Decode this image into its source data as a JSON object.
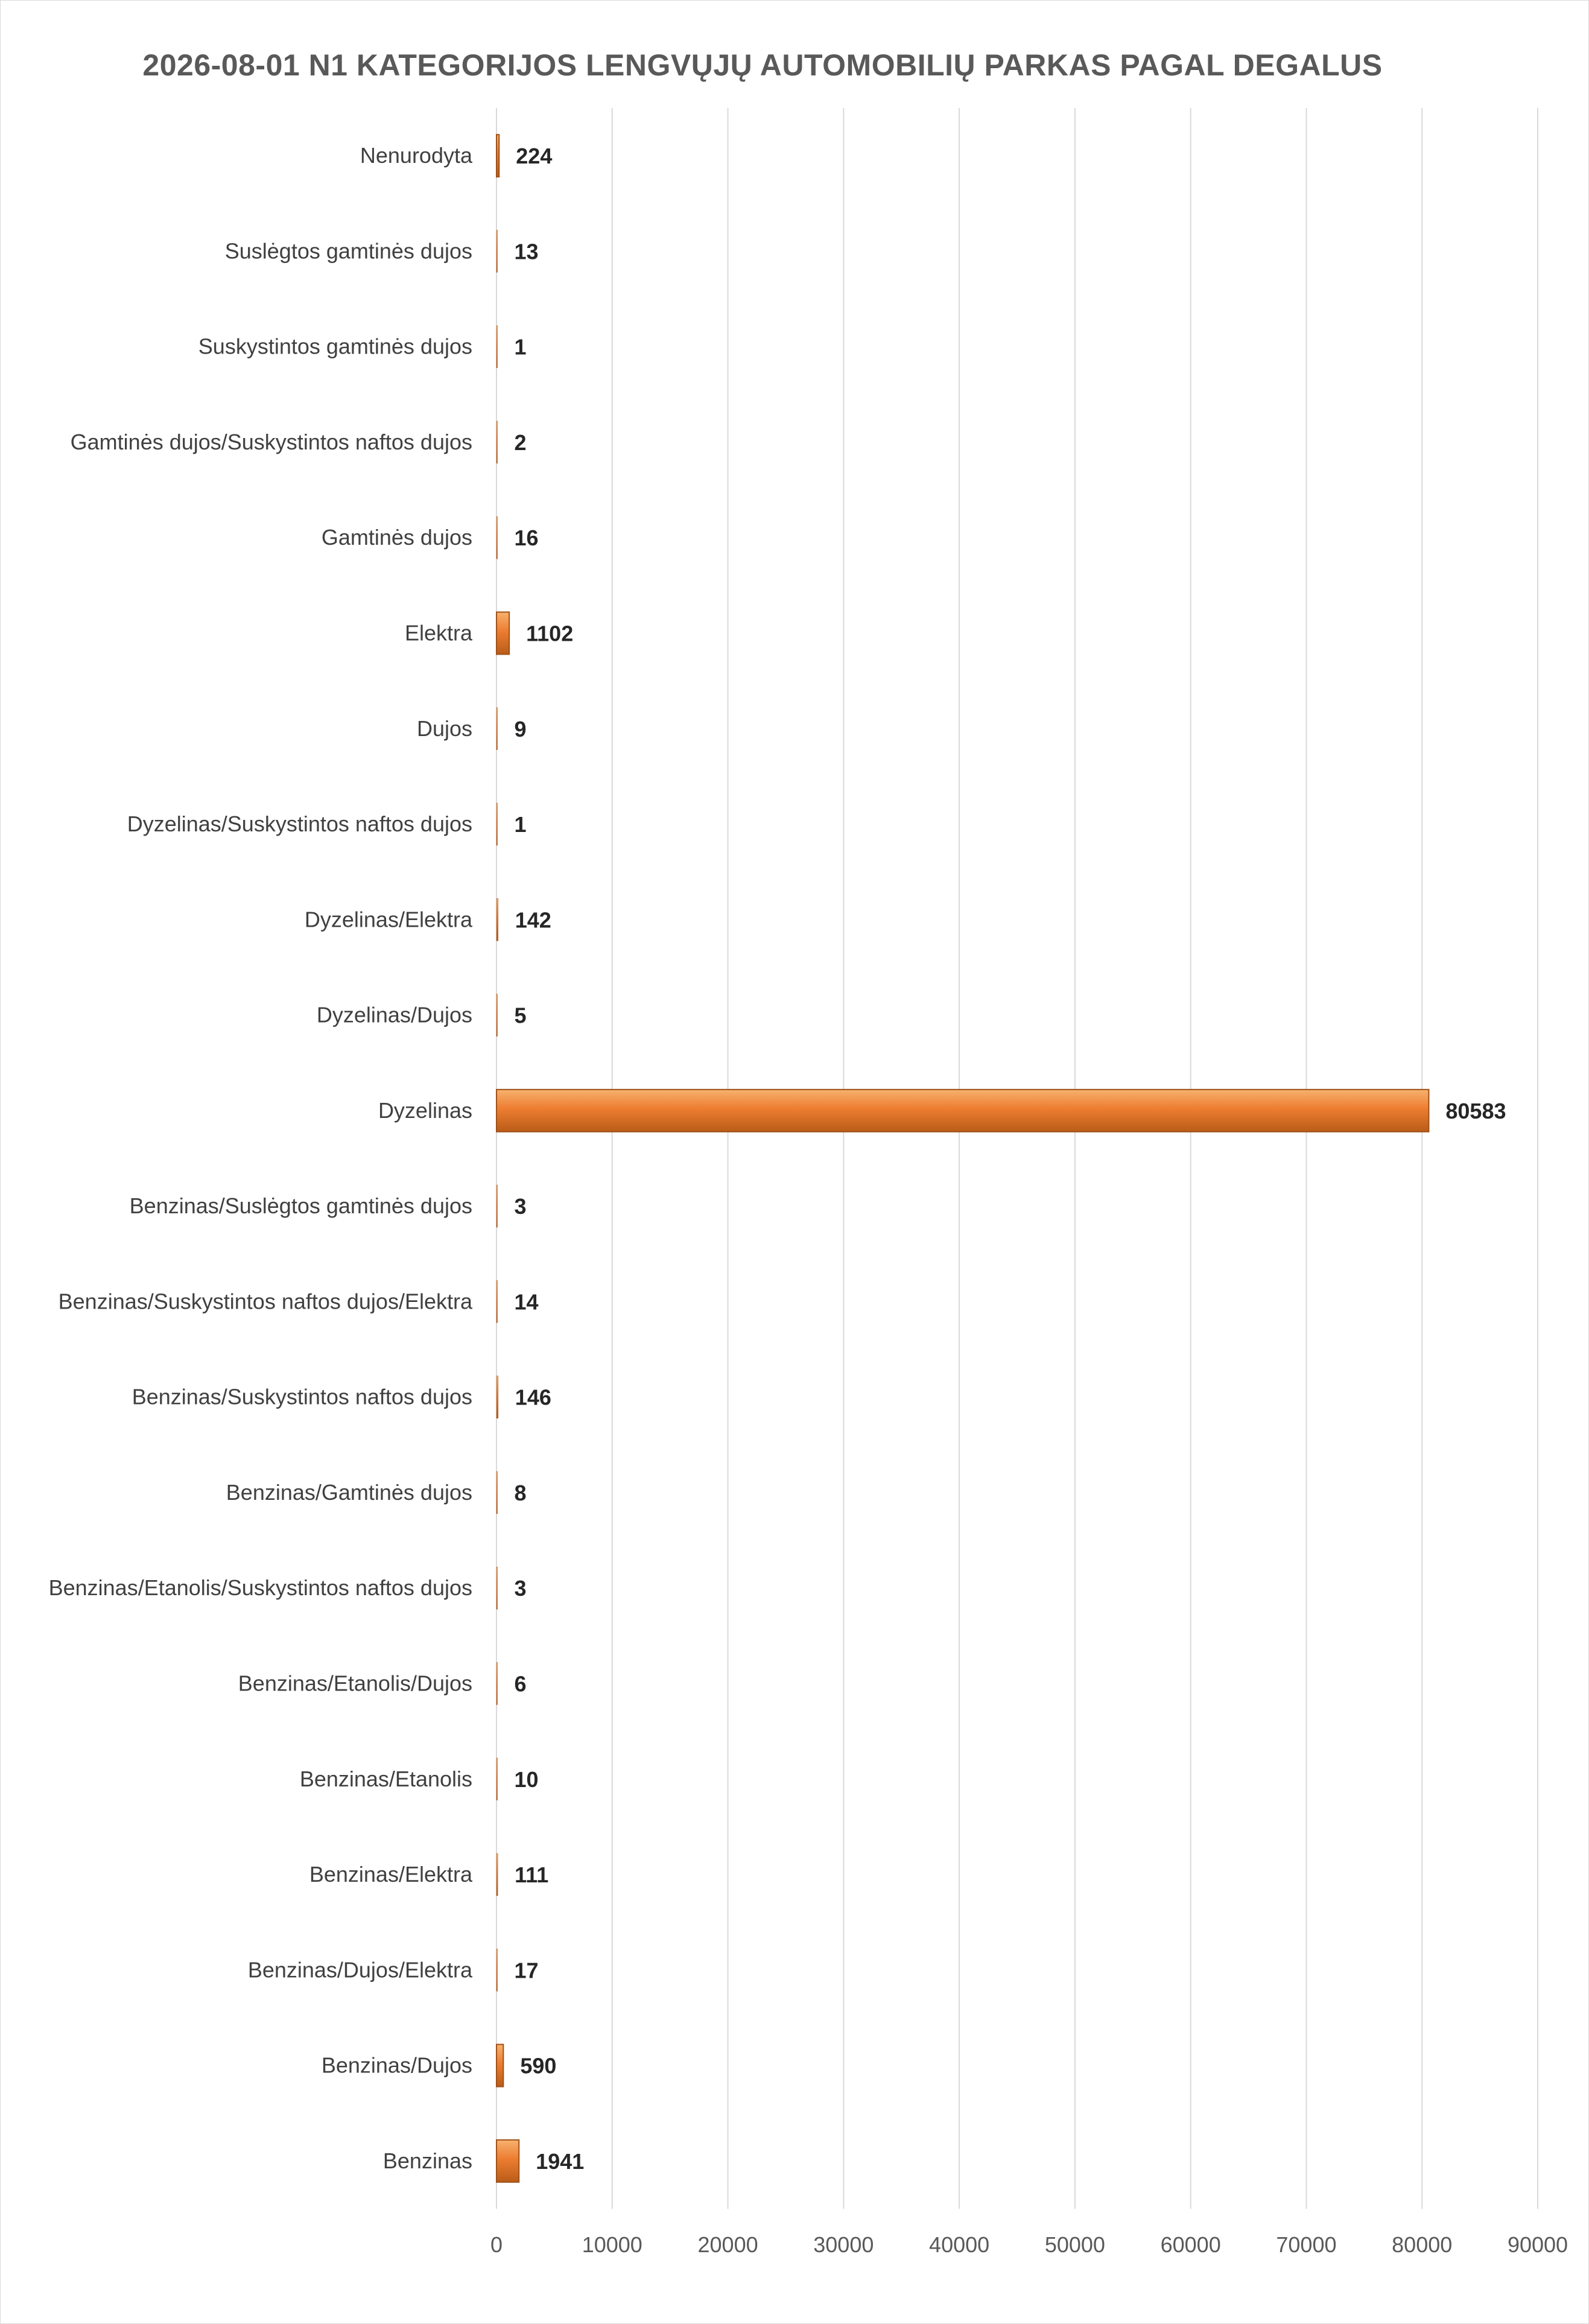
{
  "chart_data": {
    "type": "bar",
    "orientation": "horizontal",
    "title": "2026-08-01 N1 KATEGORIJOS LENGVŲJŲ AUTOMOBILIŲ PARKAS PAGAL DEGALUS",
    "xlabel": "",
    "ylabel": "",
    "xlim": [
      0,
      90000
    ],
    "x_ticks": [
      0,
      10000,
      20000,
      30000,
      40000,
      50000,
      60000,
      70000,
      80000,
      90000
    ],
    "grid": true,
    "legend": "none",
    "bar_color": "#ED7D31",
    "categories": [
      "Nenurodyta",
      "Suslėgtos gamtinės dujos",
      "Suskystintos gamtinės dujos",
      "Gamtinės dujos/Suskystintos naftos dujos",
      "Gamtinės dujos",
      "Elektra",
      "Dujos",
      "Dyzelinas/Suskystintos naftos dujos",
      "Dyzelinas/Elektra",
      "Dyzelinas/Dujos",
      "Dyzelinas",
      "Benzinas/Suslėgtos gamtinės dujos",
      "Benzinas/Suskystintos naftos dujos/Elektra",
      "Benzinas/Suskystintos naftos dujos",
      "Benzinas/Gamtinės dujos",
      "Benzinas/Etanolis/Suskystintos naftos dujos",
      "Benzinas/Etanolis/Dujos",
      "Benzinas/Etanolis",
      "Benzinas/Elektra",
      "Benzinas/Dujos/Elektra",
      "Benzinas/Dujos",
      "Benzinas"
    ],
    "values": [
      224,
      13,
      1,
      2,
      16,
      1102,
      9,
      1,
      142,
      5,
      80583,
      3,
      14,
      146,
      8,
      3,
      6,
      10,
      111,
      17,
      590,
      1941
    ]
  }
}
